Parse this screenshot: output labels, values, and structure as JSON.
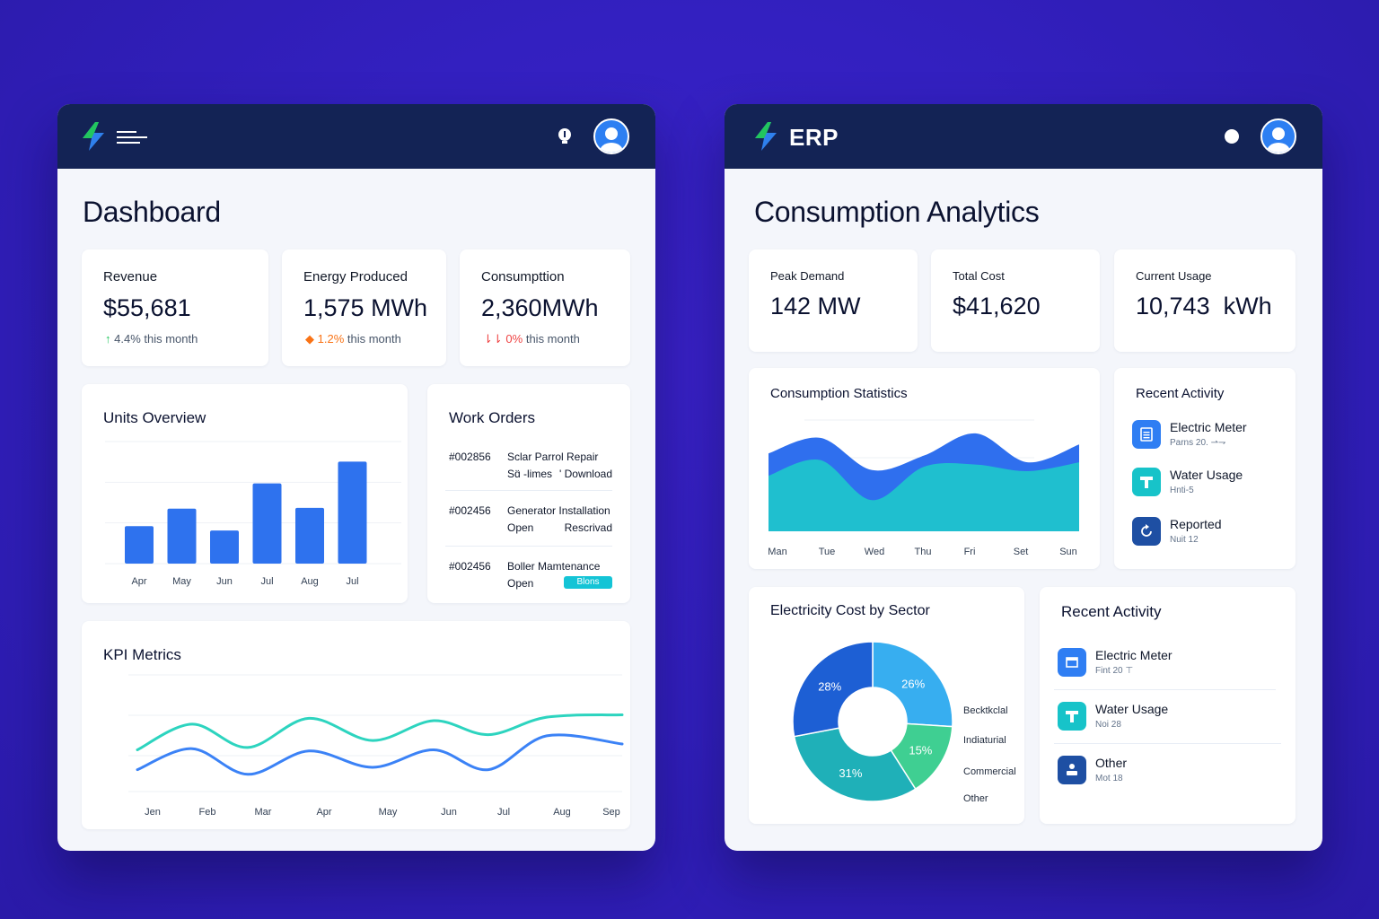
{
  "left_panel": {
    "page_title": "Dashboard",
    "stats": [
      {
        "label": "Revenue",
        "value": "$55,681",
        "change_arrow": "↑",
        "change_value": "4.4%",
        "change_suffix": "this month",
        "change_color": "#22c55e"
      },
      {
        "label": "Energy Produced",
        "value": "1,575 MWh",
        "change_arrow": "◆",
        "change_value": "1.2%",
        "change_suffix": "this month",
        "change_color": "#f97316"
      },
      {
        "label": "Consumpttion",
        "value": "2,360MWh",
        "change_arrow": "⇂⇂",
        "change_value": "0%",
        "change_suffix": "this month",
        "change_color": "#ef4444"
      }
    ],
    "units_overview": {
      "title": "Units Overview",
      "chart_data": {
        "type": "bar",
        "categories": [
          "Apr",
          "May",
          "Jun",
          "Jul",
          "Aug",
          "Jul"
        ],
        "values": [
          43,
          63,
          38,
          92,
          64,
          117
        ],
        "ylim": [
          0,
          140
        ],
        "grid": true,
        "color": "#2e72ee"
      }
    },
    "work_orders": {
      "title": "Work Orders",
      "rows": [
        {
          "id": "#002856",
          "name": "Sclar Parrol Repair",
          "status": "Sɑ̈ -limes",
          "extra": "' Download",
          "badge": ""
        },
        {
          "id": "#002456",
          "name": "Generator Installation",
          "status": "Open",
          "extra": "Rescrivad",
          "badge": ""
        },
        {
          "id": "#002456",
          "name": "Boller Mamtenance",
          "status": "Open",
          "extra": "",
          "badge": "Blons"
        }
      ]
    },
    "kpi": {
      "title": "KPI Metrics",
      "chart_data": {
        "type": "line",
        "categories": [
          "Jen",
          "Feb",
          "Mar",
          "Apr",
          "May",
          "Jun",
          "Jul",
          "Aug",
          "Sep"
        ],
        "series": [
          {
            "values": [
              45,
              67,
              47,
              72,
              53,
              70,
              58,
              73,
              75
            ],
            "color": "#2dd4bf"
          },
          {
            "values": [
              28,
              46,
              24,
              44,
              30,
              45,
              28,
              57,
              50
            ],
            "color": "#3b82f6"
          }
        ],
        "ylim": [
          0,
          100
        ],
        "grid": true
      }
    }
  },
  "right_panel": {
    "app_name": "ERP",
    "page_title": "Consumption Analytics",
    "stats": [
      {
        "label": "Peak Demand",
        "value": "142 MW"
      },
      {
        "label": "Total Cost",
        "value": "$41,620"
      },
      {
        "label": "Current Usage",
        "value": "10,743  kWh"
      }
    ],
    "consumption_statistics": {
      "title": "Consumption Statistics",
      "chart_data": {
        "type": "area",
        "categories": [
          "Man",
          "Tue",
          "Wed",
          "Thu",
          "Fri",
          "Set",
          "Sun"
        ],
        "series": [
          {
            "values": [
              70,
              84,
              55,
              68,
              88,
              62,
              78
            ],
            "color": "#2f6fee"
          },
          {
            "values": [
              50,
              64,
              28,
              58,
              60,
              54,
              62
            ],
            "color": "#1fbfcf"
          }
        ],
        "ylim": [
          0,
          100
        ],
        "grid": true
      }
    },
    "recent_activity_top": {
      "title": "Recent Activity",
      "items": [
        {
          "title": "Electric Meter",
          "sub": "Parns 20. ⇀⇁",
          "color": "#2f7ef3"
        },
        {
          "title": "Water Usage",
          "sub": "Hnti-5",
          "color": "#17c3c9"
        },
        {
          "title": "Reported",
          "sub": "Nuit 12",
          "color": "#1e4fa3"
        }
      ]
    },
    "electricity_cost": {
      "title": "Electricity Cost by Sector",
      "chart_data": {
        "type": "pie",
        "slices": [
          {
            "value": 26,
            "label": "26%",
            "color": "#37aef0"
          },
          {
            "value": 15,
            "label": "15%",
            "color": "#3fcf92"
          },
          {
            "value": 31,
            "label": "31%",
            "color": "#1fb0b8"
          },
          {
            "value": 28,
            "label": "28%",
            "color": "#1d5fd4"
          }
        ],
        "legend": [
          "Becktkclal",
          "Indiaturial",
          "Commercial",
          "Other"
        ],
        "donut": true
      }
    },
    "recent_activity_bottom": {
      "title": "Recent Activity",
      "items": [
        {
          "title": "Electric Meter",
          "sub": "Fint 20 ⊤",
          "color": "#2f7ef3"
        },
        {
          "title": "Water Usage",
          "sub": "Noi 28",
          "color": "#17c3c9"
        },
        {
          "title": "Other",
          "sub": "Mot 18",
          "color": "#1e4fa3"
        }
      ]
    }
  },
  "icons": [
    "bolt-logo-icon",
    "menu-icon",
    "lightbulb-icon",
    "user-avatar-icon",
    "meter-icon",
    "faucet-icon",
    "refresh-icon",
    "person-icon"
  ]
}
